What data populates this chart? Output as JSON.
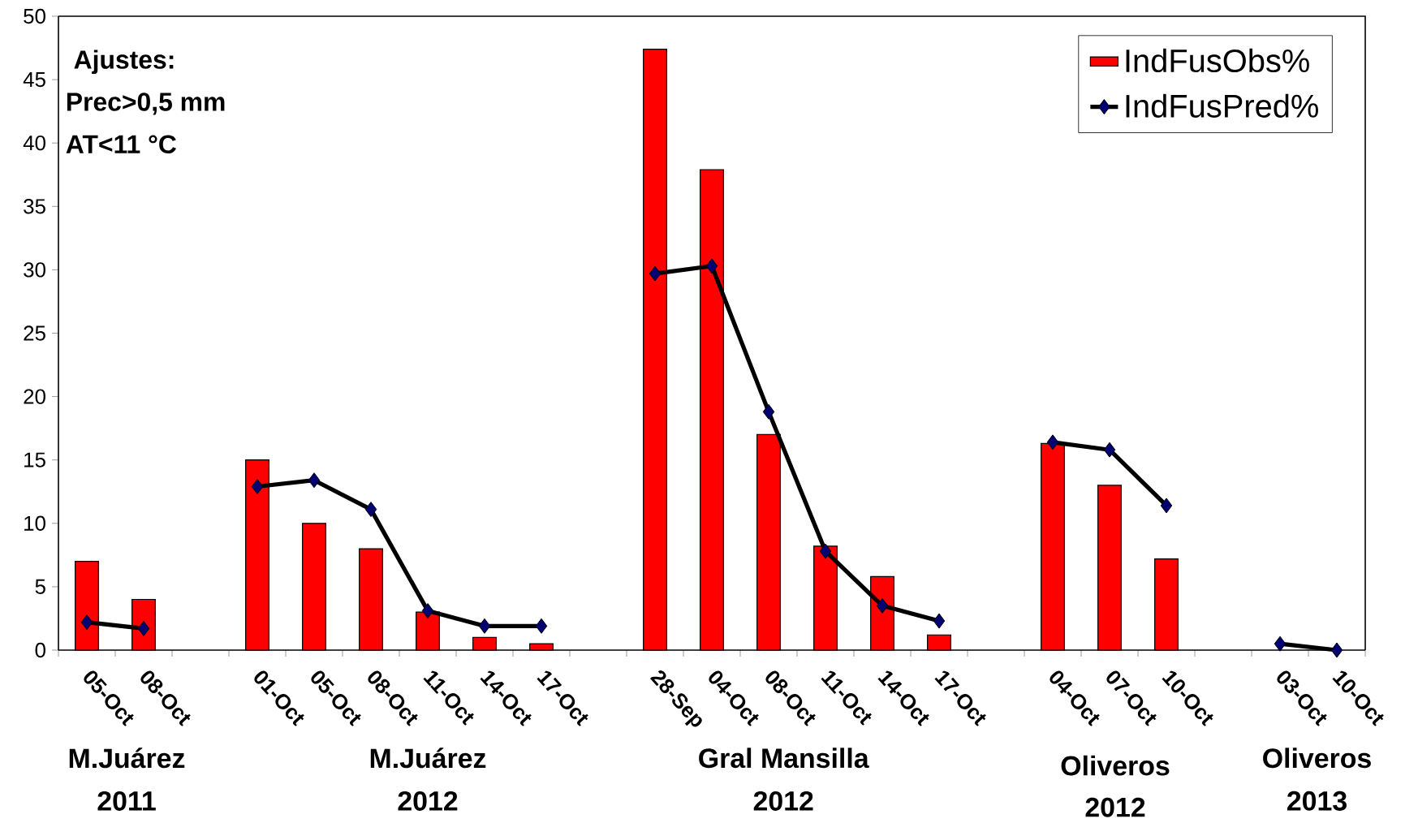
{
  "chart_data": {
    "type": "bar",
    "categories": [
      "05-Oct",
      "08-Oct",
      null,
      "01-Oct",
      "05-Oct",
      "08-Oct",
      "11-Oct",
      "14-Oct",
      "17-Oct",
      null,
      "28-Sep",
      "04-Oct",
      "08-Oct",
      "11-Oct",
      "14-Oct",
      "17-Oct",
      null,
      "04-Oct",
      "07-Oct",
      "10-Oct",
      null,
      "03-Oct",
      "10-Oct"
    ],
    "series": [
      {
        "name": "IndFusObs%",
        "color": "#ff0000",
        "values": [
          7,
          4,
          null,
          15,
          10,
          8,
          3,
          1,
          0.5,
          null,
          47.4,
          37.9,
          17,
          8.2,
          5.8,
          1.2,
          null,
          16.3,
          13,
          7.2,
          null,
          null,
          null
        ]
      },
      {
        "name": "IndFusPred%",
        "type": "line",
        "color": "#000000",
        "marker": "diamond",
        "values": [
          2.2,
          1.7,
          null,
          12.9,
          13.4,
          11.1,
          3.1,
          1.9,
          1.9,
          null,
          29.7,
          30.3,
          18.8,
          7.8,
          3.5,
          2.3,
          null,
          16.4,
          15.8,
          11.4,
          null,
          0.5,
          0
        ]
      }
    ],
    "ylim": [
      0,
      50
    ],
    "yticks": [
      0,
      5,
      10,
      15,
      20,
      25,
      30,
      35,
      40,
      45,
      50
    ],
    "legend": "top right",
    "annotations": [
      "Ajustes:",
      "Prec>0,5 mm",
      "AT<11 °C",
      "M.Juárez",
      "2011",
      "M.Juárez",
      "2012",
      "Gral Mansilla",
      "2012",
      "Oliveros",
      "2012",
      "Oliveros",
      "2013"
    ]
  }
}
